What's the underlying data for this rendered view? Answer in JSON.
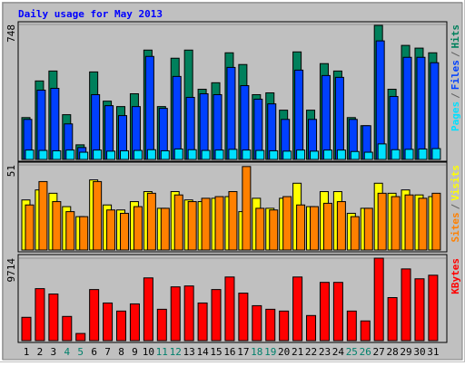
{
  "title": "Daily usage for May 2013",
  "chart_data": [
    {
      "type": "bar",
      "ylim": [
        0,
        748
      ],
      "yticks": [
        748
      ],
      "legend_separator": "/",
      "series": [
        {
          "name": "Pages",
          "color": "#00e0ff",
          "values": [
            52,
            50,
            48,
            52,
            40,
            52,
            46,
            48,
            50,
            54,
            48,
            58,
            54,
            50,
            52,
            56,
            52,
            50,
            48,
            46,
            52,
            46,
            52,
            52,
            44,
            40,
            86,
            54,
            56,
            58,
            60
          ]
        },
        {
          "name": "Files",
          "color": "#0040ff",
          "values": [
            222,
            384,
            394,
            197,
            66,
            359,
            298,
            243,
            293,
            571,
            283,
            460,
            344,
            364,
            359,
            510,
            409,
            334,
            308,
            222,
            495,
            222,
            465,
            455,
            222,
            187,
            657,
            349,
            566,
            566,
            536
          ]
        },
        {
          "name": "Hits",
          "color": "#00805c",
          "values": [
            232,
            435,
            490,
            248,
            81,
            485,
            323,
            293,
            364,
            606,
            293,
            561,
            606,
            389,
            425,
            591,
            526,
            359,
            369,
            273,
            596,
            273,
            531,
            490,
            232,
            187,
            743,
            389,
            632,
            617,
            591
          ]
        }
      ]
    },
    {
      "type": "bar",
      "ylim": [
        0,
        51
      ],
      "yticks": [
        51
      ],
      "legend_separator": "/",
      "series": [
        {
          "name": "Sites",
          "color": "#ff8000",
          "values": [
            27,
            41,
            29,
            23,
            20,
            41,
            24,
            22,
            26,
            34,
            25,
            33,
            29,
            31,
            32,
            35,
            50,
            25,
            24,
            32,
            27,
            26,
            28,
            29,
            20,
            25,
            34,
            32,
            33,
            31,
            34
          ]
        },
        {
          "name": "Visits",
          "color": "#ffff00",
          "values": [
            30,
            36,
            34,
            26,
            20,
            42,
            27,
            24,
            29,
            35,
            25,
            35,
            30,
            29,
            31,
            32,
            23,
            31,
            25,
            31,
            40,
            26,
            35,
            35,
            22,
            25,
            40,
            34,
            36,
            33,
            32
          ]
        }
      ]
    },
    {
      "type": "bar",
      "ylim": [
        0,
        9714
      ],
      "yticks": [
        9714
      ],
      "categories": [
        "1",
        "2",
        "3",
        "4",
        "5",
        "6",
        "7",
        "8",
        "9",
        "10",
        "11",
        "12",
        "13",
        "14",
        "15",
        "16",
        "17",
        "18",
        "19",
        "20",
        "21",
        "22",
        "23",
        "24",
        "25",
        "26",
        "27",
        "28",
        "29",
        "30",
        "31"
      ],
      "category_colors": [
        "#000000",
        "#000000",
        "#000000",
        "#00806b",
        "#00806b",
        "#000000",
        "#000000",
        "#000000",
        "#000000",
        "#000000",
        "#00806b",
        "#00806b",
        "#000000",
        "#000000",
        "#000000",
        "#000000",
        "#000000",
        "#00806b",
        "#00806b",
        "#000000",
        "#000000",
        "#000000",
        "#000000",
        "#000000",
        "#00806b",
        "#00806b",
        "#000000",
        "#000000",
        "#000000",
        "#000000",
        "#000000"
      ],
      "series": [
        {
          "name": "KBytes",
          "color": "#ff0000",
          "values": [
            2746,
            6125,
            5491,
            2851,
            845,
            6019,
            4435,
            3485,
            4330,
            7392,
            3696,
            6336,
            6442,
            4435,
            6019,
            7498,
            5597,
            4118,
            3696,
            3485,
            7498,
            2957,
            6864,
            6864,
            3485,
            2323,
            9714,
            5069,
            8448,
            7286,
            7709
          ]
        }
      ]
    }
  ]
}
